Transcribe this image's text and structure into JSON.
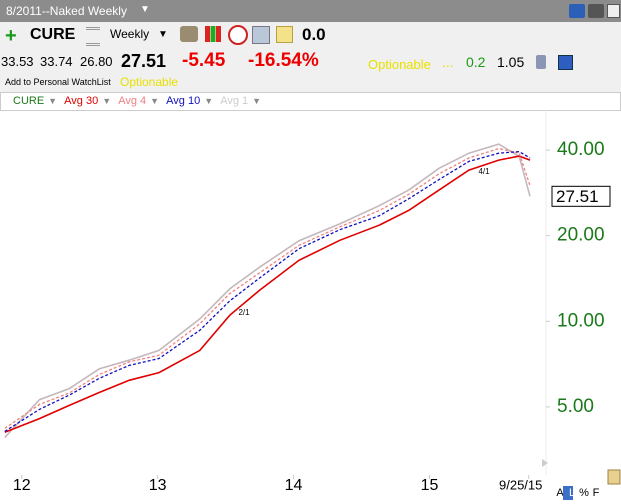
{
  "window": {
    "title": "8/2011--Naked Weekly"
  },
  "toolbar": {
    "symbol": "CURE",
    "period": "Weekly",
    "value": "0.0"
  },
  "quote": {
    "open": "33.53",
    "high": "33.74",
    "low": "26.80",
    "last": "27.51",
    "change": "-5.45",
    "change_pct": "-16.54%",
    "optionable": "Optionable",
    "dots": "...",
    "v1": "0.2",
    "v2": "1.05"
  },
  "watchlist": {
    "link": "Add to Personal WatchList",
    "optionable": "Optionable"
  },
  "footer": [
    "A",
    "L",
    "%",
    "F"
  ],
  "chart_data": {
    "type": "line",
    "log_scale": true,
    "inactive_series": [
      "Avg 1"
    ],
    "x": [
      2011.875,
      2012.13,
      2012.35,
      2012.57,
      2012.79,
      2013.01,
      2013.31,
      2013.53,
      2013.75,
      2014.04,
      2014.34,
      2014.63,
      2014.85,
      2015.07,
      2015.29,
      2015.51,
      2015.66,
      2015.74
    ],
    "series": [
      {
        "name": "CURE",
        "color": "#c4b8bc",
        "dashed": false,
        "values": [
          3.9,
          5.3,
          5.8,
          6.8,
          7.3,
          7.9,
          10.2,
          13.0,
          15.5,
          19.2,
          22.0,
          25.5,
          29.0,
          34.5,
          39.0,
          42.0,
          38.0,
          27.51
        ]
      },
      {
        "name": "Avg 30",
        "color": "#e00000",
        "dashed": false,
        "values": [
          4.07,
          4.55,
          5.06,
          5.62,
          6.2,
          6.6,
          7.9,
          10.5,
          12.86,
          16.39,
          19.27,
          21.77,
          24.59,
          28.93,
          34.01,
          36.88,
          38.1,
          36.88
        ]
      },
      {
        "name": "Avg 4",
        "color": "#f08080",
        "dashed": true,
        "values": [
          4.2,
          5.1,
          5.6,
          6.5,
          7.2,
          7.6,
          9.8,
          12.5,
          14.8,
          18.5,
          21.5,
          24.5,
          28.0,
          33.0,
          37.5,
          40.5,
          39.0,
          30.0
        ]
      },
      {
        "name": "Avg 10",
        "color": "#1010c0",
        "dashed": true,
        "values": [
          4.1,
          4.9,
          5.5,
          6.3,
          7.0,
          7.4,
          9.3,
          11.8,
          14.2,
          18.0,
          21.0,
          23.5,
          27.0,
          31.5,
          36.5,
          39.0,
          39.5,
          37.5
        ]
      }
    ],
    "last_value": 27.51,
    "annotations": [
      "2/1",
      "4/1"
    ],
    "xlim": [
      2011.84,
      2015.85
    ],
    "xticks": [
      {
        "value": 2012,
        "label": "12"
      },
      {
        "value": 2013,
        "label": "13"
      },
      {
        "value": 2014,
        "label": "14"
      },
      {
        "value": 2015,
        "label": "15"
      },
      {
        "value": 2015.73,
        "label": "9/25/15"
      }
    ],
    "ylim": [
      3,
      60
    ],
    "yticks": [
      {
        "value": 40,
        "label": "40.00"
      },
      {
        "value": 20,
        "label": "20.00"
      },
      {
        "value": 10,
        "label": "10.00"
      },
      {
        "value": 5,
        "label": "5.00"
      }
    ]
  }
}
